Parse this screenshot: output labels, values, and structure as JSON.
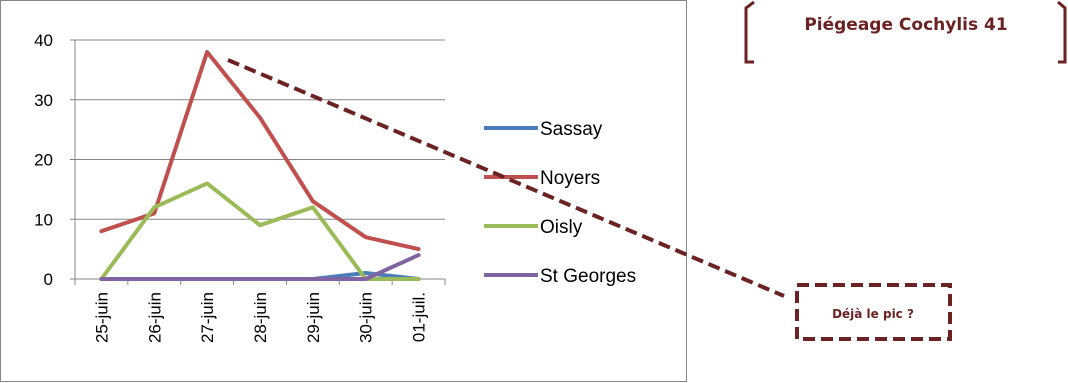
{
  "chart_data": {
    "type": "line",
    "categories": [
      "25-juin",
      "26-juin",
      "27-juin",
      "28-juin",
      "29-juin",
      "30-juin",
      "01-juil."
    ],
    "series": [
      {
        "name": "Sassay",
        "color": "#4a7ebb",
        "values": [
          0,
          0,
          0,
          0,
          0,
          1,
          0
        ]
      },
      {
        "name": "Noyers",
        "color": "#c0504d",
        "values": [
          8,
          11,
          38,
          27,
          13,
          7,
          5
        ]
      },
      {
        "name": "Oisly",
        "color": "#9bbb59",
        "values": [
          0,
          12,
          16,
          9,
          12,
          0,
          0
        ]
      },
      {
        "name": "St Georges",
        "color": "#8064a2",
        "values": [
          0,
          0,
          0,
          0,
          0,
          0,
          4
        ]
      }
    ],
    "ylim": [
      0,
      40
    ],
    "yticks": [
      0,
      10,
      20,
      30,
      40
    ],
    "grid": true,
    "legend_position": "right"
  },
  "title_box": {
    "label": "Piégeage Cochylis 41"
  },
  "callout": {
    "label": "Déjà le pic ?"
  },
  "colors": {
    "annotation": "#6b2222",
    "gridline": "#868686"
  }
}
